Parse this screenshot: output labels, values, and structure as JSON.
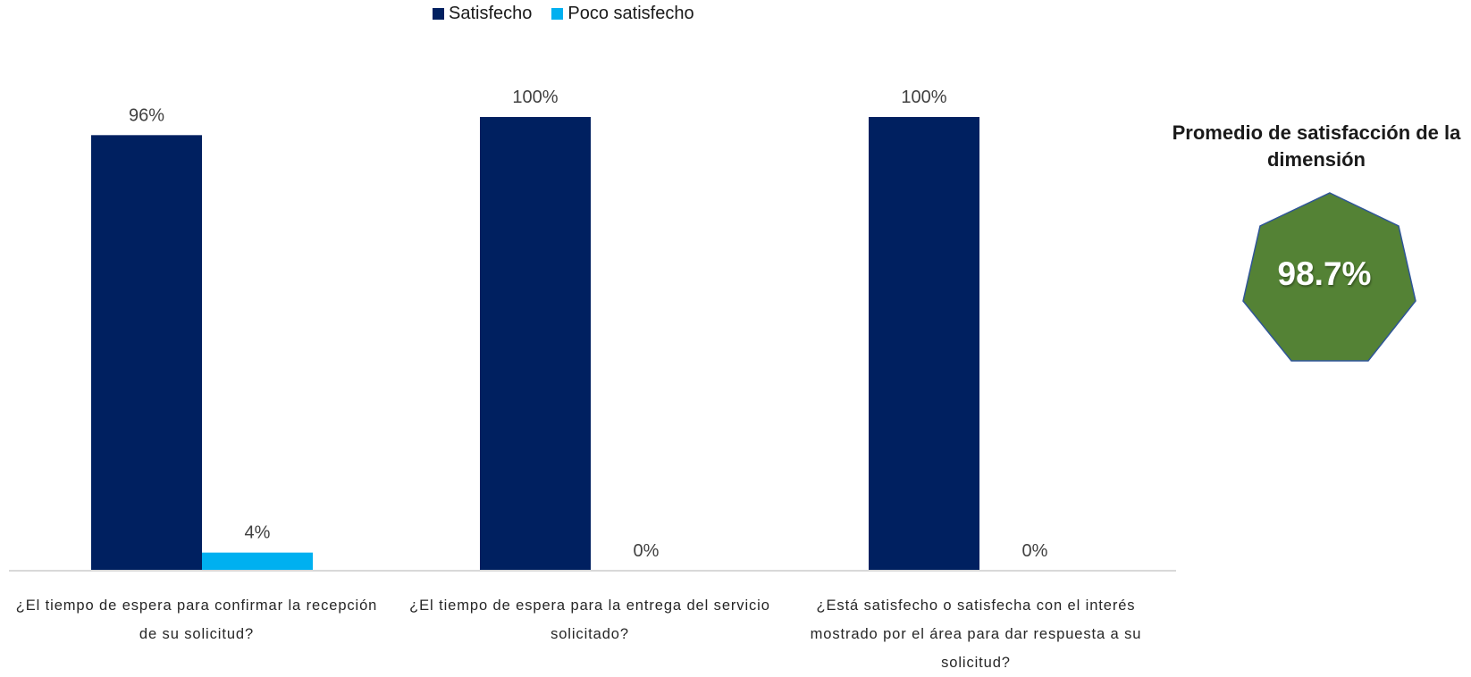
{
  "chart_data": {
    "type": "bar",
    "categories": [
      "¿El tiempo de espera para confirmar la recepción de su solicitud?",
      "¿El tiempo de espera para la entrega del servicio solicitado?",
      "¿Está satisfecho o satisfecha con el interés mostrado por el área para dar respuesta a su solicitud?"
    ],
    "series": [
      {
        "name": "Satisfecho",
        "values": [
          96,
          100,
          100
        ],
        "color": "#002060"
      },
      {
        "name": "Poco satisfecho",
        "values": [
          4,
          0,
          0
        ],
        "color": "#00B0F0"
      }
    ],
    "data_labels": [
      [
        "96%",
        "100%",
        "100%"
      ],
      [
        "4%",
        "0%",
        "0%"
      ]
    ],
    "ylim": [
      0,
      100
    ],
    "grid": false,
    "legend_position": "top",
    "xlabel": "",
    "ylabel": ""
  },
  "summary": {
    "title": "Promedio de satisfacción de la dimensión",
    "value": "98.7%",
    "shape_color": "#548235",
    "shape": "heptagon"
  }
}
